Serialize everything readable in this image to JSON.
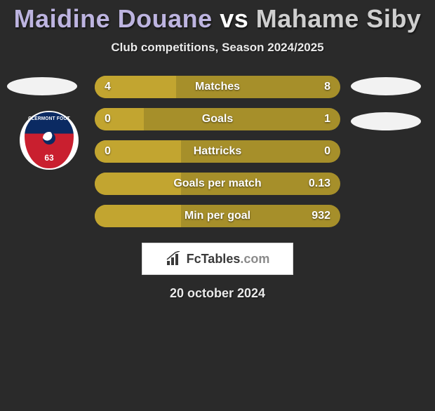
{
  "title": {
    "player1": "Maidine Douane",
    "vs": "vs",
    "player2": "Mahame Siby",
    "color_p1": "#bdb4e0",
    "color_vs": "#ffffff",
    "color_p2": "#cfcfcf"
  },
  "subtitle": "Club competitions, Season 2024/2025",
  "crest": {
    "top_text": "CLERMONT FOOT",
    "sub_text": "AUVERGNE",
    "number": "63"
  },
  "bars": {
    "track_color": "#a68f2a",
    "fill_color": "#c2a530",
    "items": [
      {
        "label": "Matches",
        "left": "4",
        "right": "8",
        "fill_pct": 33
      },
      {
        "label": "Goals",
        "left": "0",
        "right": "1",
        "fill_pct": 20
      },
      {
        "label": "Hattricks",
        "left": "0",
        "right": "0",
        "fill_pct": 35
      },
      {
        "label": "Goals per match",
        "left": "",
        "right": "0.13",
        "fill_pct": 35
      },
      {
        "label": "Min per goal",
        "left": "",
        "right": "932",
        "fill_pct": 35
      }
    ]
  },
  "brand": {
    "name": "FcTables",
    "suffix": ".com"
  },
  "date": "20 october 2024",
  "colors": {
    "page_bg": "#2a2a2a",
    "ellipse": "#f2f2f2",
    "bar_text": "#ffffff"
  }
}
